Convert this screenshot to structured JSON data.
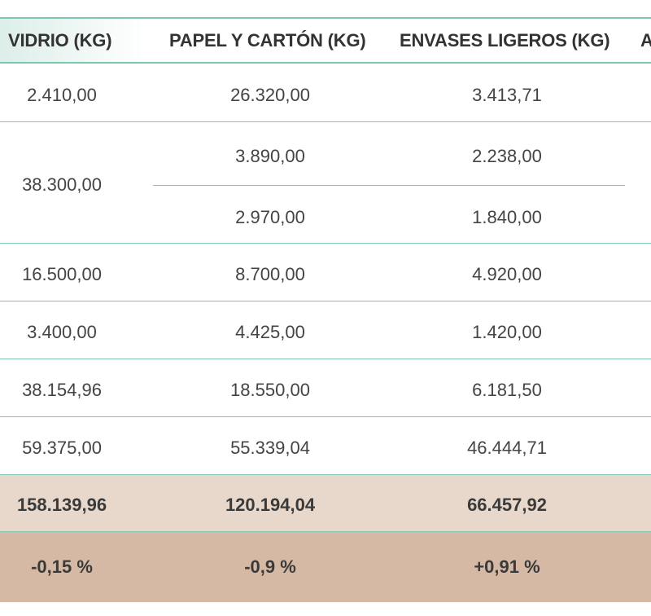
{
  "table": {
    "headers": [
      "VIDRIO (KG)",
      "PAPEL Y CARTÓN (KG)",
      "ENVASES LIGEROS (KG)",
      "A"
    ],
    "rows": [
      {
        "vidrio": "2.410,00",
        "papel": "26.320,00",
        "envases": "3.413,71"
      },
      {
        "vidrio": "38.300,00",
        "papel": [
          "3.890,00",
          "2.970,00"
        ],
        "envases": [
          "2.238,00",
          "1.840,00"
        ]
      },
      {
        "vidrio": "16.500,00",
        "papel": "8.700,00",
        "envases": "4.920,00"
      },
      {
        "vidrio": "3.400,00",
        "papel": "4.425,00",
        "envases": "1.420,00"
      },
      {
        "vidrio": "38.154,96",
        "papel": "18.550,00",
        "envases": "6.181,50"
      },
      {
        "vidrio": "59.375,00",
        "papel": "55.339,04",
        "envases": "46.444,71"
      }
    ],
    "totals": {
      "vidrio": "158.139,96",
      "papel": "120.194,04",
      "envases": "66.457,92"
    },
    "percent_change": {
      "vidrio": "-0,15 %",
      "papel": "-0,9 %",
      "envases": "+0,91 %"
    }
  },
  "colors": {
    "header_border": "#7fc5b6",
    "total_row": "#e7d8cb",
    "percent_row": "#d5b9a5"
  }
}
